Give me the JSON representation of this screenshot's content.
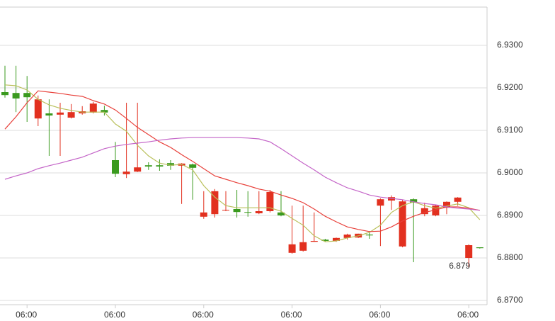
{
  "chart_data": {
    "type": "candlestick",
    "categories": [
      null,
      null,
      "06:00",
      null,
      null,
      null,
      null,
      null,
      null,
      null,
      "06:00",
      null,
      null,
      null,
      null,
      null,
      null,
      null,
      "06:00",
      null,
      null,
      null,
      null,
      null,
      null,
      null,
      "06:00",
      null,
      null,
      null,
      null,
      null,
      null,
      null,
      "06:00",
      null,
      null,
      null,
      null,
      null,
      null,
      null,
      "06:00",
      null
    ],
    "open": [
      6.9183,
      6.9175,
      6.9178,
      6.9173,
      6.9135,
      6.9142,
      6.9143,
      6.9145,
      6.9163,
      6.9142,
      6.8998,
      6.9003,
      6.9013,
      6.9015,
      6.9015,
      6.9017,
      6.9022,
      6.9012,
      6.8907,
      6.8957,
      6.8913,
      6.8908,
      6.8907,
      6.891,
      6.8955,
      6.89,
      6.8832,
      6.8837,
      6.884,
      6.884,
      6.8847,
      6.8855,
      6.8857,
      6.8853,
      6.8938,
      6.8943,
      6.8933,
      6.893,
      6.8917,
      6.8923,
      6.8932,
      6.8942,
      6.883,
      6.8823
    ],
    "high": [
      6.9252,
      6.9252,
      6.9228,
      6.9182,
      6.9173,
      6.9165,
      6.9162,
      6.9157,
      6.9167,
      6.9158,
      6.9073,
      6.9165,
      6.9165,
      6.9025,
      6.9032,
      6.903,
      6.9023,
      6.9022,
      6.8957,
      6.8962,
      6.8957,
      6.896,
      6.8957,
      6.8957,
      6.896,
      6.8957,
      6.8923,
      6.8923,
      6.8907,
      6.8845,
      6.8848,
      6.8857,
      6.8857,
      6.8863,
      6.894,
      6.8947,
      6.8937,
      6.894,
      6.893,
      6.8925,
      6.8933,
      6.8943,
      6.8832,
      6.8825
    ],
    "low": [
      6.9177,
      6.9143,
      6.912,
      6.911,
      6.904,
      6.904,
      6.9128,
      6.9137,
      6.914,
      6.9135,
      6.899,
      6.8988,
      6.9002,
      6.9007,
      6.9005,
      6.9007,
      6.8927,
      6.8937,
      6.8892,
      6.8895,
      6.891,
      6.8895,
      6.8897,
      6.8903,
      6.8907,
      6.8898,
      6.881,
      6.8815,
      6.8838,
      6.8838,
      6.8838,
      6.8843,
      6.8847,
      6.8845,
      6.8828,
      6.8913,
      6.8825,
      6.879,
      6.8898,
      6.8898,
      6.8903,
      6.8923,
      6.8778,
      6.8822
    ],
    "close": [
      6.919,
      6.9188,
      6.9188,
      6.9128,
      6.914,
      6.9137,
      6.913,
      6.914,
      6.9142,
      6.9148,
      6.903,
      6.8997,
      6.9003,
      6.9018,
      6.9018,
      6.9023,
      6.9017,
      6.902,
      6.8897,
      6.8903,
      6.8912,
      6.8915,
      6.8908,
      6.8905,
      6.891,
      6.8907,
      6.8812,
      6.8817,
      6.8838,
      6.8843,
      6.884,
      6.8847,
      6.8848,
      6.8855,
      6.8923,
      6.8935,
      6.8827,
      6.8938,
      6.8903,
      6.89,
      6.8918,
      6.8932,
      6.88,
      6.8825
    ],
    "up_color": "#3a9a1e",
    "down_color": "#e2301f",
    "lines": [
      {
        "color": "#b9c05a",
        "values": [
          6.9207,
          6.9205,
          6.9195,
          6.9173,
          6.916,
          6.9152,
          6.9147,
          6.9143,
          6.9143,
          6.9143,
          6.9115,
          6.9098,
          6.9065,
          6.904,
          6.9023,
          6.9018,
          6.902,
          6.9007,
          6.897,
          6.8943,
          6.8923,
          6.8918,
          6.8918,
          6.8918,
          6.8918,
          6.891,
          6.8893,
          6.8877,
          6.8852,
          6.8838,
          6.884,
          6.8847,
          6.8852,
          6.886,
          6.8877,
          6.8907,
          6.8923,
          6.8932,
          6.8923,
          6.8917,
          6.8922,
          6.8927,
          6.8918,
          6.889
        ]
      },
      {
        "color": "#e8403a",
        "values": [
          6.9103,
          6.9132,
          6.9165,
          6.9193,
          6.919,
          6.9187,
          6.9183,
          6.918,
          6.917,
          6.9162,
          6.9148,
          6.9128,
          6.9107,
          6.909,
          6.9073,
          6.906,
          6.9043,
          6.9027,
          6.901,
          6.8993,
          6.8985,
          6.8977,
          6.897,
          6.8962,
          6.8957,
          6.8948,
          6.894,
          6.893,
          6.8915,
          6.8898,
          6.8885,
          6.8873,
          6.8867,
          6.8862,
          6.8863,
          6.8873,
          6.8887,
          6.8898,
          6.8907,
          6.8913,
          6.892,
          6.892,
          6.8917,
          6.8912
        ]
      },
      {
        "color": "#c465c8",
        "values": [
          6.8985,
          6.8993,
          6.9,
          6.901,
          6.9017,
          6.9023,
          6.903,
          6.9037,
          6.9047,
          6.9057,
          6.9063,
          6.9067,
          6.907,
          6.9073,
          6.9077,
          6.908,
          6.9082,
          6.9083,
          6.9083,
          6.9083,
          6.9083,
          6.9083,
          6.9082,
          6.908,
          6.9073,
          6.9057,
          6.904,
          6.9023,
          6.9007,
          6.899,
          6.8977,
          6.8965,
          6.8957,
          6.8948,
          6.8943,
          6.894,
          6.8937,
          6.8932,
          6.8928,
          6.8925,
          6.892,
          6.8917,
          6.8915,
          6.8912
        ]
      }
    ],
    "annotation": 6.879,
    "ylim": [
      6.869,
      6.939
    ],
    "yticks": [
      {
        "value": 6.87,
        "label": "6.8700"
      },
      {
        "value": 6.88,
        "label": "6.8800"
      },
      {
        "value": 6.89,
        "label": "6.8900"
      },
      {
        "value": 6.9,
        "label": "6.9000"
      },
      {
        "value": 6.91,
        "label": "6.9100"
      },
      {
        "value": 6.92,
        "label": "6.9200"
      },
      {
        "value": 6.93,
        "label": "6.9300"
      }
    ],
    "grid": true
  }
}
